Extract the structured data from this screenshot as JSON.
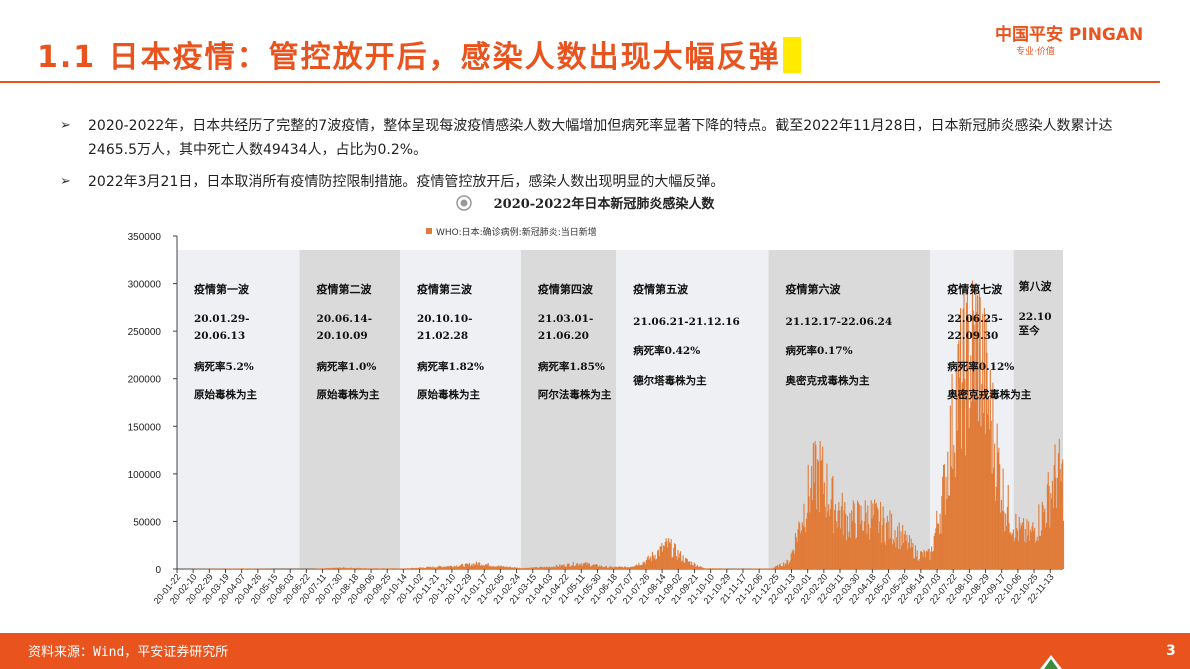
{
  "header": {
    "title": "1.1 日本疫情：管控放开后，感染人数出现大幅反弹",
    "logo_text": "中国平安 PINGAN",
    "logo_sub": "专业·价值"
  },
  "bullets": [
    "2020-2022年，日本共经历了完整的7波疫情，整体呈现每波疫情感染人数大幅增加但病死率显著下降的特点。截至2022年11月28日，日本新冠肺炎感染人数累计达2465.5万人，其中死亡人数49434人，占比为0.2%。",
    "2022年3月21日，日本取消所有疫情防控限制措施。疫情管控放开后，感染人数出现明显的大幅反弹。"
  ],
  "footer": {
    "source": "资料来源：Wind，平安证券研究所",
    "page": "3"
  },
  "colors": {
    "accent": "#e8531e",
    "bar": "#e07b39",
    "band_dark": "#dadada",
    "band_light": "#eef0f4"
  },
  "chart_data": {
    "type": "bar",
    "title": "2020-2022年日本新冠肺炎感染人数",
    "legend": "WHO:日本:确诊病例:新冠肺炎:当日新增",
    "ylim": [
      0,
      350000
    ],
    "yticks": [
      0,
      50000,
      100000,
      150000,
      200000,
      250000,
      300000,
      350000
    ],
    "xtick_labels": [
      "20-01-22",
      "20-02-10",
      "20-02-29",
      "20-03-19",
      "20-04-07",
      "20-04-26",
      "20-05-15",
      "20-06-03",
      "20-06-22",
      "20-07-11",
      "20-07-30",
      "20-08-18",
      "20-09-06",
      "20-09-25",
      "20-10-14",
      "20-11-02",
      "20-11-21",
      "20-12-10",
      "20-12-29",
      "21-01-17",
      "21-02-05",
      "21-02-24",
      "21-03-15",
      "21-04-03",
      "21-04-22",
      "21-05-11",
      "21-05-30",
      "21-06-18",
      "21-07-07",
      "21-07-26",
      "21-08-14",
      "21-09-02",
      "21-09-21",
      "21-10-10",
      "21-10-29",
      "21-11-17",
      "21-12-06",
      "21-12-25",
      "22-01-13",
      "22-02-01",
      "22-02-20",
      "22-03-11",
      "22-03-30",
      "22-04-18",
      "22-05-07",
      "22-05-26",
      "22-06-14",
      "22-07-03",
      "22-07-22",
      "22-08-10",
      "22-08-29",
      "22-09-17",
      "22-10-06",
      "22-10-25",
      "22-11-13"
    ],
    "series_points": [
      [
        "20-01-22",
        0
      ],
      [
        "20-04-10",
        500
      ],
      [
        "20-05-20",
        80
      ],
      [
        "20-07-01",
        200
      ],
      [
        "20-08-01",
        1300
      ],
      [
        "20-09-01",
        700
      ],
      [
        "20-10-15",
        500
      ],
      [
        "20-11-20",
        2200
      ],
      [
        "20-12-25",
        4000
      ],
      [
        "21-01-10",
        6000
      ],
      [
        "21-02-01",
        3000
      ],
      [
        "21-03-01",
        1000
      ],
      [
        "21-04-01",
        2000
      ],
      [
        "21-05-10",
        6000
      ],
      [
        "21-06-10",
        2000
      ],
      [
        "21-07-05",
        2000
      ],
      [
        "21-07-25",
        8000
      ],
      [
        "21-08-20",
        25000
      ],
      [
        "21-09-10",
        9000
      ],
      [
        "21-10-01",
        1000
      ],
      [
        "21-11-01",
        200
      ],
      [
        "21-12-20",
        500
      ],
      [
        "22-01-10",
        8000
      ],
      [
        "22-01-20",
        40000
      ],
      [
        "22-02-05",
        90000
      ],
      [
        "22-02-15",
        100000
      ],
      [
        "22-03-01",
        70000
      ],
      [
        "22-03-20",
        50000
      ],
      [
        "22-04-15",
        55000
      ],
      [
        "22-05-15",
        40000
      ],
      [
        "22-06-10",
        15000
      ],
      [
        "22-06-25",
        15000
      ],
      [
        "22-07-10",
        80000
      ],
      [
        "22-07-25",
        180000
      ],
      [
        "22-08-05",
        210000
      ],
      [
        "22-08-20",
        240000
      ],
      [
        "22-09-05",
        150000
      ],
      [
        "22-09-20",
        70000
      ],
      [
        "22-10-05",
        40000
      ],
      [
        "22-10-20",
        35000
      ],
      [
        "22-11-05",
        60000
      ],
      [
        "22-11-20",
        100000
      ],
      [
        "22-11-28",
        90000
      ]
    ],
    "waves": [
      {
        "name": "疫情第一波",
        "period": "20.01.29-20.06.13",
        "fatality": "病死率5.2%",
        "strain": "原始毒株为主",
        "shade": "light"
      },
      {
        "name": "疫情第二波",
        "period": "20.06.14-20.10.09",
        "fatality": "病死率1.0%",
        "strain": "原始毒株为主",
        "shade": "dark"
      },
      {
        "name": "疫情第三波",
        "period": "20.10.10-21.02.28",
        "fatality": "病死率1.82%",
        "strain": "原始毒株为主",
        "shade": "light"
      },
      {
        "name": "疫情第四波",
        "period": "21.03.01-21.06.20",
        "fatality": "病死率1.85%",
        "strain": "阿尔法毒株为主",
        "shade": "dark"
      },
      {
        "name": "疫情第五波",
        "period": "21.06.21-21.12.16",
        "fatality": "病死率0.42%",
        "strain": "德尔塔毒株为主",
        "shade": "light"
      },
      {
        "name": "疫情第六波",
        "period": "21.12.17-22.06.24",
        "fatality": "病死率0.17%",
        "strain": "奥密克戎毒株为主",
        "shade": "dark"
      },
      {
        "name": "疫情第七波",
        "period": "22.06.25-22.09.30",
        "fatality": "病死率0.12%",
        "strain": "奥密克戎毒株为主",
        "shade": "light"
      },
      {
        "name": "第八波",
        "period": "22.10至今",
        "fatality": "",
        "strain": "",
        "shade": "dark"
      }
    ]
  }
}
